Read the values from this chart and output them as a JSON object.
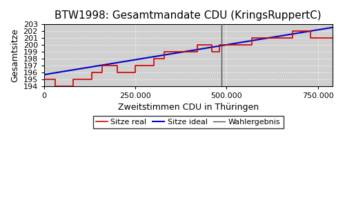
{
  "title": "BTW1998: Gesamtmandate CDU (KringsRuppertC)",
  "xlabel": "Zweitstimmen CDU in Thüringen",
  "ylabel": "Gesamtsitze",
  "xlim": [
    0,
    790000
  ],
  "ylim": [
    194,
    203
  ],
  "wahlergebnis": 487000,
  "xticks": [
    0,
    250000,
    500000,
    750000
  ],
  "xtick_labels": [
    "0",
    "250.000",
    "500.000",
    "750.000"
  ],
  "yticks": [
    194,
    195,
    196,
    197,
    198,
    199,
    200,
    201,
    202,
    203
  ],
  "background_color": "#d0d0d0",
  "ideal_color": "#0000cc",
  "real_color": "#cc0000",
  "wahlergebnis_color": "#505050",
  "legend_labels": [
    "Sitze real",
    "Sitze ideal",
    "Wahlergebnis"
  ],
  "ideal_line": {
    "x": [
      0,
      790000
    ],
    "y": [
      195.65,
      202.55
    ]
  },
  "real_steps": {
    "x": [
      0,
      30000,
      30000,
      80000,
      80000,
      130000,
      130000,
      160000,
      160000,
      200000,
      200000,
      250000,
      250000,
      300000,
      300000,
      330000,
      330000,
      380000,
      380000,
      420000,
      420000,
      460000,
      460000,
      480000,
      480000,
      520000,
      520000,
      570000,
      570000,
      630000,
      630000,
      680000,
      680000,
      730000,
      730000,
      790000
    ],
    "y": [
      195,
      195,
      194,
      194,
      195,
      195,
      196,
      196,
      197,
      197,
      196,
      196,
      197,
      197,
      198,
      198,
      199,
      199,
      199,
      199,
      200,
      200,
      199,
      199,
      200,
      200,
      200,
      200,
      201,
      201,
      201,
      201,
      202,
      202,
      201,
      201
    ]
  }
}
